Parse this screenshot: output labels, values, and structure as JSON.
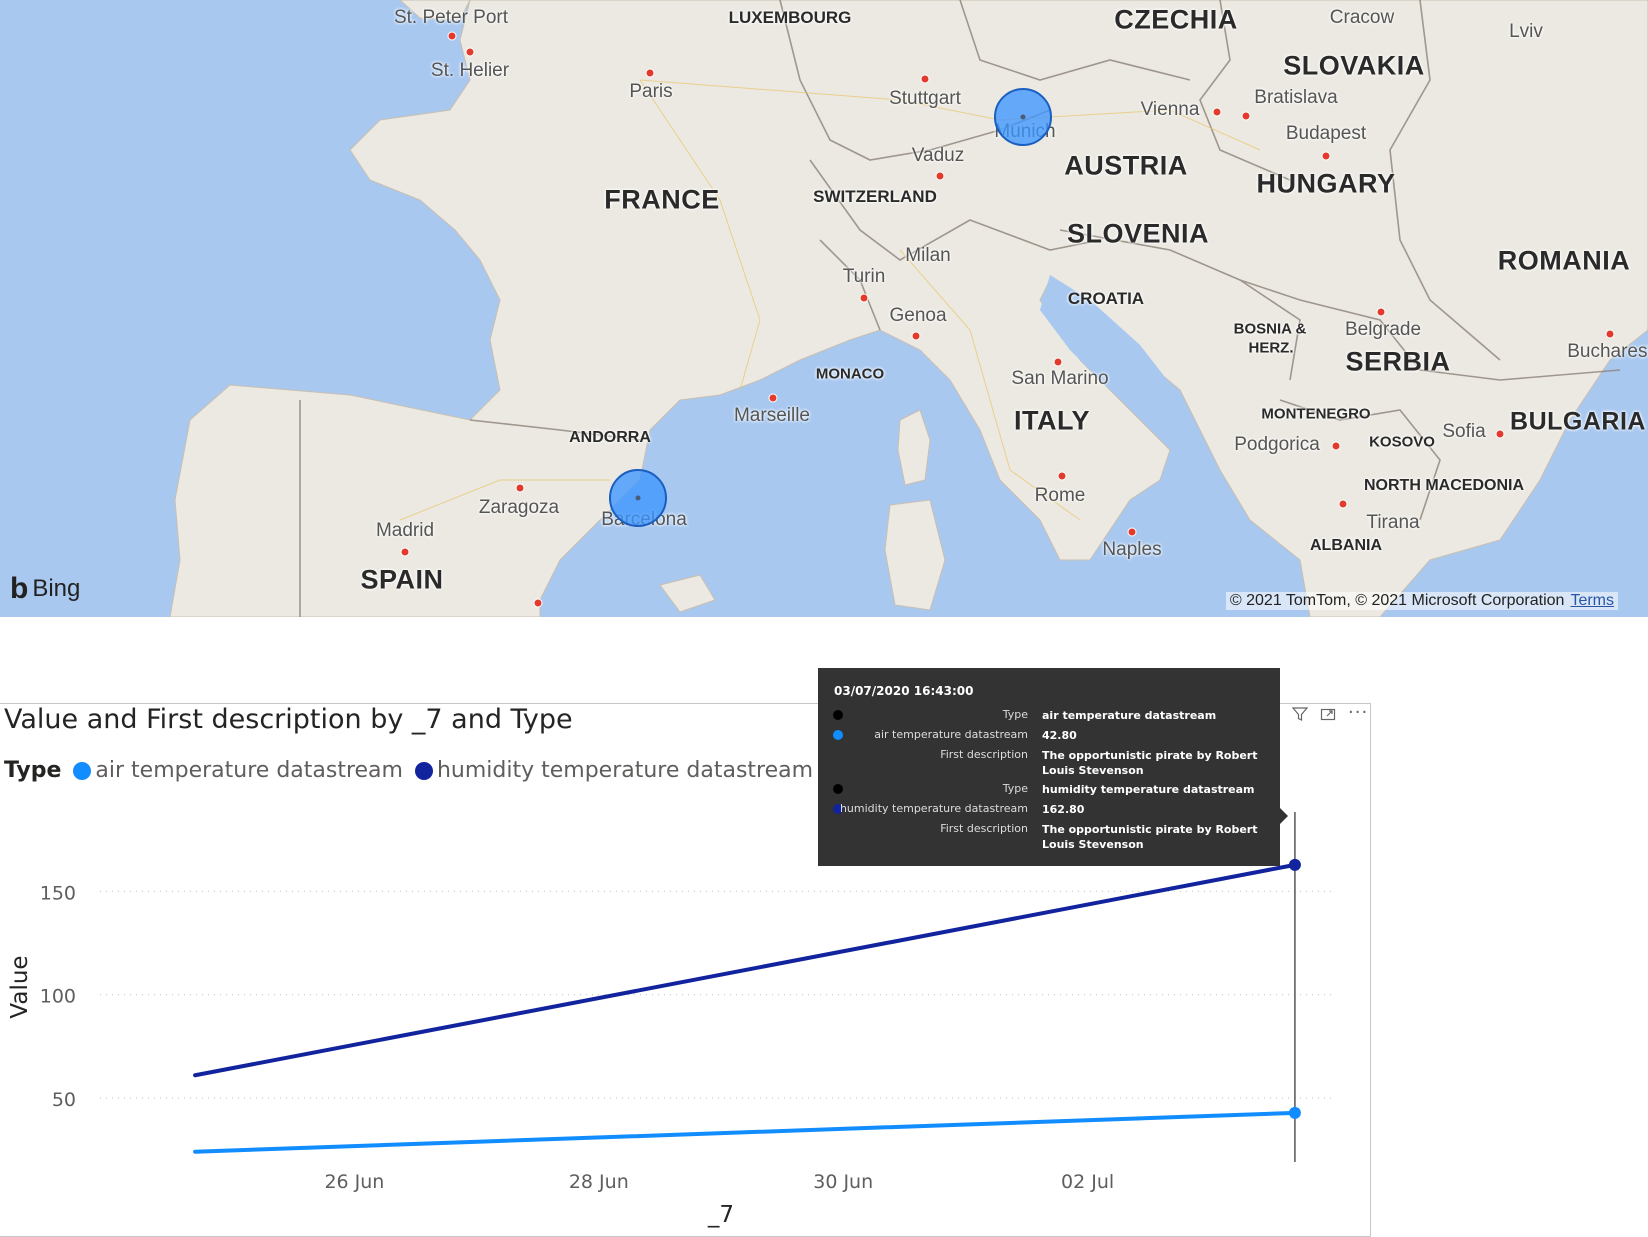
{
  "map": {
    "provider": "Bing",
    "copyright": "© 2021 TomTom, © 2021 Microsoft Corporation",
    "terms_link": "Terms",
    "countries": [
      "LUXEMBOURG",
      "CZECHIA",
      "SLOVAKIA",
      "AUSTRIA",
      "HUNGARY",
      "FRANCE",
      "SWITZERLAND",
      "SLOVENIA",
      "ROMANIA",
      "CROATIA",
      "BOSNIA &",
      "HERZ.",
      "SERBIA",
      "MONACO",
      "ITALY",
      "MONTENEGRO",
      "KOSOVO",
      "BULGARIA",
      "NORTH MACEDONIA",
      "ALBANIA",
      "ANDORRA",
      "SPAIN"
    ],
    "cities": [
      "St. Peter Port",
      "St. Helier",
      "Paris",
      "Cracow",
      "Lviv",
      "Stuttgart",
      "Munich",
      "Vienna",
      "Bratislava",
      "Budapest",
      "Vaduz",
      "Milan",
      "Turin",
      "Genoa",
      "Belgrade",
      "Bucharest",
      "San Marino",
      "Marseille",
      "Podgorica",
      "Sofia",
      "Tirana",
      "Rome",
      "Naples",
      "Zaragoza",
      "Barcelona",
      "Madrid"
    ],
    "bubble_color": "#3c96ff"
  },
  "visual": {
    "title": "Value and First description by _7 and Type",
    "legend_title": "Type",
    "icons": [
      "filter-icon",
      "focus-mode-icon",
      "more-options-icon"
    ]
  },
  "tooltip": {
    "date": "03/07/2020 16:43:00",
    "rows": [
      {
        "key": "Type",
        "value": "air temperature datastream",
        "dot": "#000000"
      },
      {
        "key": "air temperature datastream",
        "value": "42.80",
        "dot": "#118dff"
      },
      {
        "key": "First description",
        "value": "The opportunistic pirate by Robert Louis Stevenson",
        "dot": ""
      },
      {
        "key": "Type",
        "value": "humidity temperature datastream",
        "dot": "#000000"
      },
      {
        "key": "humidity temperature datastream",
        "value": "162.80",
        "dot": "#12239e"
      },
      {
        "key": "First description",
        "value": "The opportunistic pirate by Robert Louis Stevenson",
        "dot": ""
      }
    ]
  },
  "chart_data": {
    "type": "line",
    "title": "Value and First description by _7 and Type",
    "xlabel": "_7",
    "ylabel": "Value",
    "x": [
      "2020-06-24T16:43:00",
      "2020-07-03T16:43:00"
    ],
    "x_ticks": [
      "26 Jun",
      "28 Jun",
      "30 Jun",
      "02 Jul"
    ],
    "x_tick_dates": [
      "2020-06-26",
      "2020-06-28",
      "2020-06-30",
      "2020-07-02"
    ],
    "y_ticks": [
      50,
      100,
      150
    ],
    "ylim": [
      20,
      170
    ],
    "grid": true,
    "legend_position": "top-left",
    "series": [
      {
        "name": "air temperature datastream",
        "color": "#118dff",
        "values": [
          24.0,
          42.8
        ]
      },
      {
        "name": "humidity temperature datastream",
        "color": "#12239e",
        "values": [
          61.0,
          162.8
        ]
      }
    ],
    "hover_date": "2020-07-03T16:43:00"
  }
}
